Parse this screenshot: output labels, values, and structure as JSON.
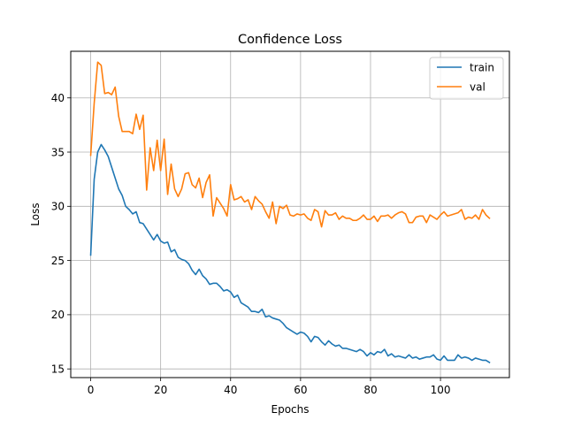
{
  "chart_data": {
    "type": "line",
    "title": "Confidence Loss",
    "xlabel": "Epochs",
    "ylabel": "Loss",
    "xlim": [
      -5.7,
      119.7
    ],
    "ylim": [
      14.2,
      44.3
    ],
    "xticks": [
      0,
      20,
      40,
      60,
      80,
      100
    ],
    "yticks": [
      15,
      20,
      25,
      30,
      35,
      40
    ],
    "grid": true,
    "legend_position": "top-right",
    "series": [
      {
        "name": "train",
        "color": "#1f77b4",
        "x": [
          0,
          1,
          2,
          3,
          4,
          5,
          6,
          7,
          8,
          9,
          10,
          11,
          12,
          13,
          14,
          15,
          16,
          17,
          18,
          19,
          20,
          21,
          22,
          23,
          24,
          25,
          26,
          27,
          28,
          29,
          30,
          31,
          32,
          33,
          34,
          35,
          36,
          37,
          38,
          39,
          40,
          41,
          42,
          43,
          44,
          45,
          46,
          47,
          48,
          49,
          50,
          51,
          52,
          53,
          54,
          55,
          56,
          57,
          58,
          59,
          60,
          61,
          62,
          63,
          64,
          65,
          66,
          67,
          68,
          69,
          70,
          71,
          72,
          73,
          74,
          75,
          76,
          77,
          78,
          79,
          80,
          81,
          82,
          83,
          84,
          85,
          86,
          87,
          88,
          89,
          90,
          91,
          92,
          93,
          94,
          95,
          96,
          97,
          98,
          99,
          100,
          101,
          102,
          103,
          104,
          105,
          106,
          107,
          108,
          109,
          110,
          111,
          112,
          113,
          114
        ],
        "values": [
          25.5,
          32.5,
          35.0,
          35.7,
          35.2,
          34.6,
          33.6,
          32.6,
          31.6,
          31.0,
          30.0,
          29.7,
          29.3,
          29.5,
          28.5,
          28.4,
          27.9,
          27.4,
          26.9,
          27.4,
          26.8,
          26.6,
          26.7,
          25.8,
          26.0,
          25.3,
          25.1,
          25.0,
          24.7,
          24.1,
          23.7,
          24.2,
          23.6,
          23.3,
          22.8,
          22.9,
          22.9,
          22.6,
          22.2,
          22.3,
          22.1,
          21.6,
          21.8,
          21.1,
          20.9,
          20.7,
          20.3,
          20.3,
          20.2,
          20.5,
          19.8,
          19.9,
          19.7,
          19.6,
          19.5,
          19.2,
          18.8,
          18.6,
          18.4,
          18.2,
          18.4,
          18.3,
          18.0,
          17.5,
          18.0,
          17.9,
          17.5,
          17.2,
          17.6,
          17.3,
          17.1,
          17.2,
          16.9,
          16.9,
          16.8,
          16.7,
          16.6,
          16.8,
          16.6,
          16.2,
          16.5,
          16.3,
          16.6,
          16.5,
          16.8,
          16.2,
          16.4,
          16.1,
          16.2,
          16.1,
          16.0,
          16.3,
          16.0,
          16.1,
          15.9,
          16.0,
          16.1,
          16.1,
          16.3,
          15.9,
          15.8,
          16.2,
          15.8,
          15.8,
          15.8,
          16.3,
          16.0,
          16.1,
          16.0,
          15.8,
          16.0,
          15.9,
          15.8,
          15.8,
          15.6
        ]
      },
      {
        "name": "val",
        "color": "#ff7f0e",
        "x": [
          0,
          1,
          2,
          3,
          4,
          5,
          6,
          7,
          8,
          9,
          10,
          11,
          12,
          13,
          14,
          15,
          16,
          17,
          18,
          19,
          20,
          21,
          22,
          23,
          24,
          25,
          26,
          27,
          28,
          29,
          30,
          31,
          32,
          33,
          34,
          35,
          36,
          37,
          38,
          39,
          40,
          41,
          42,
          43,
          44,
          45,
          46,
          47,
          48,
          49,
          50,
          51,
          52,
          53,
          54,
          55,
          56,
          57,
          58,
          59,
          60,
          61,
          62,
          63,
          64,
          65,
          66,
          67,
          68,
          69,
          70,
          71,
          72,
          73,
          74,
          75,
          76,
          77,
          78,
          79,
          80,
          81,
          82,
          83,
          84,
          85,
          86,
          87,
          88,
          89,
          90,
          91,
          92,
          93,
          94,
          95,
          96,
          97,
          98,
          99,
          100,
          101,
          102,
          103,
          104,
          105,
          106,
          107,
          108,
          109,
          110,
          111,
          112,
          113,
          114
        ],
        "values": [
          34.7,
          39.5,
          43.3,
          43.0,
          40.4,
          40.5,
          40.3,
          41.0,
          38.3,
          36.9,
          36.9,
          36.9,
          36.7,
          38.5,
          37.1,
          38.4,
          31.5,
          35.4,
          33.3,
          36.1,
          33.3,
          36.2,
          31.1,
          33.9,
          31.6,
          30.9,
          31.6,
          33.0,
          33.1,
          32.0,
          31.7,
          32.6,
          30.8,
          32.2,
          32.9,
          29.1,
          30.8,
          30.3,
          29.8,
          29.1,
          32.0,
          30.6,
          30.7,
          30.9,
          30.4,
          30.6,
          29.7,
          30.9,
          30.5,
          30.2,
          29.5,
          28.9,
          30.4,
          28.4,
          30.0,
          29.8,
          30.1,
          29.2,
          29.1,
          29.3,
          29.2,
          29.3,
          28.9,
          28.7,
          29.7,
          29.5,
          28.1,
          29.6,
          29.2,
          29.2,
          29.4,
          28.8,
          29.1,
          28.9,
          28.9,
          28.7,
          28.7,
          28.9,
          29.2,
          28.8,
          28.8,
          29.1,
          28.6,
          29.1,
          29.1,
          29.2,
          28.9,
          29.2,
          29.4,
          29.5,
          29.3,
          28.5,
          28.5,
          29.0,
          29.1,
          29.1,
          28.5,
          29.2,
          29.0,
          28.8,
          29.2,
          29.5,
          29.1,
          29.2,
          29.3,
          29.4,
          29.7,
          28.8,
          29.0,
          28.9,
          29.2,
          28.8,
          29.7,
          29.2,
          28.9
        ]
      }
    ]
  }
}
